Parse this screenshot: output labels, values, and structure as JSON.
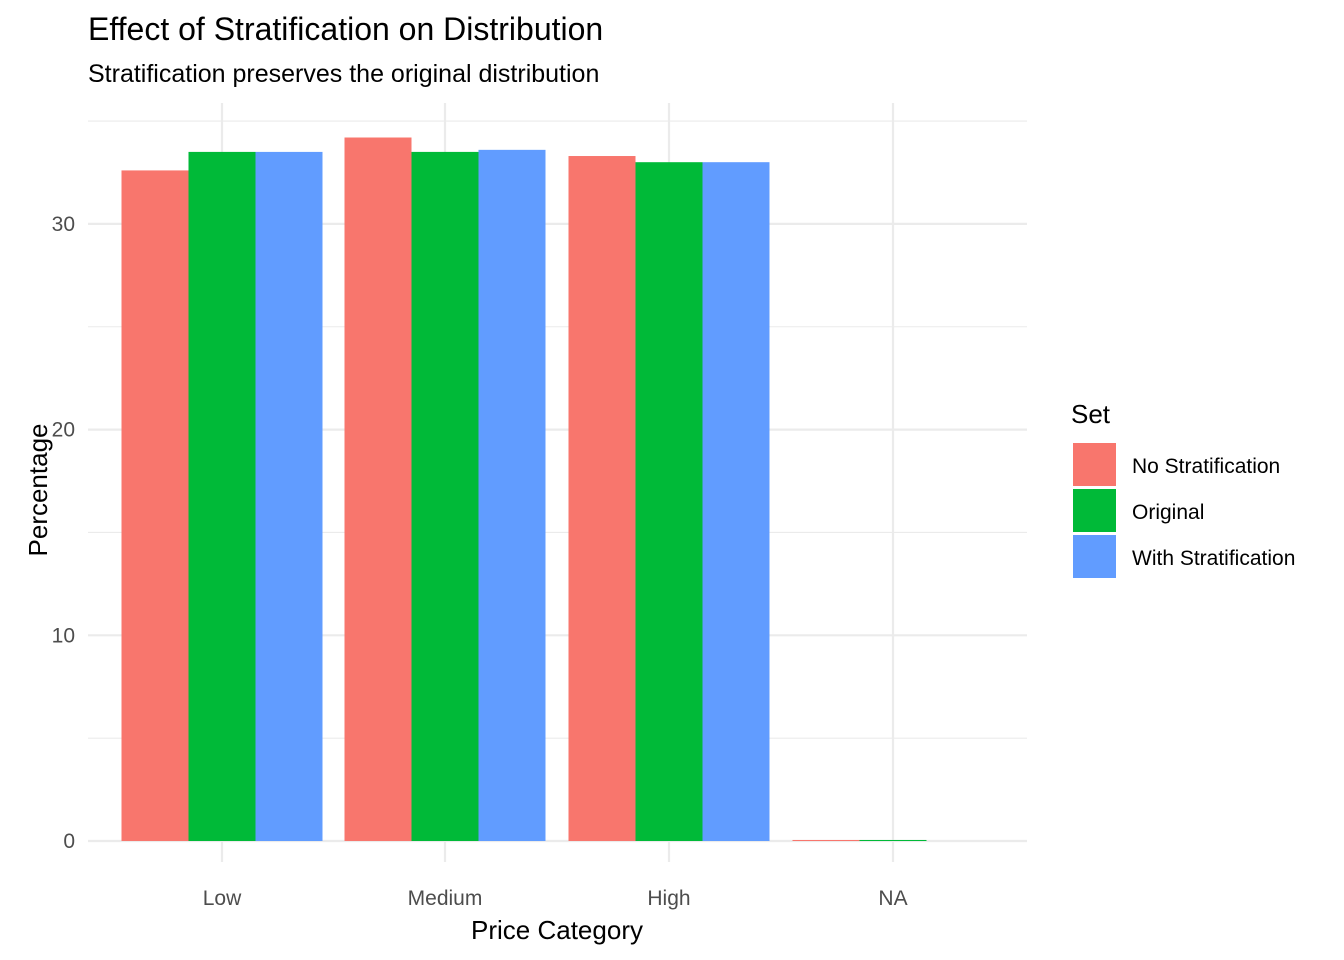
{
  "chart_data": {
    "type": "bar",
    "title": "Effect of Stratification on Distribution",
    "subtitle": "Stratification preserves the original distribution",
    "xlabel": "Price Category",
    "ylabel": "Percentage",
    "categories": [
      "Low",
      "Medium",
      "High",
      "NA"
    ],
    "series": [
      {
        "name": "No Stratification",
        "color": "#F8766D",
        "values": [
          32.6,
          34.2,
          33.3,
          0.05
        ]
      },
      {
        "name": "Original",
        "color": "#00BA38",
        "values": [
          33.5,
          33.5,
          33.0,
          0.05
        ]
      },
      {
        "name": "With Stratification",
        "color": "#619CFF",
        "values": [
          33.5,
          33.6,
          33.0,
          0.0
        ]
      }
    ],
    "ylim": [
      0,
      35
    ],
    "yticks": [
      0,
      10,
      20,
      30
    ],
    "grid": true,
    "legend": {
      "title": "Set",
      "position": "right"
    }
  }
}
